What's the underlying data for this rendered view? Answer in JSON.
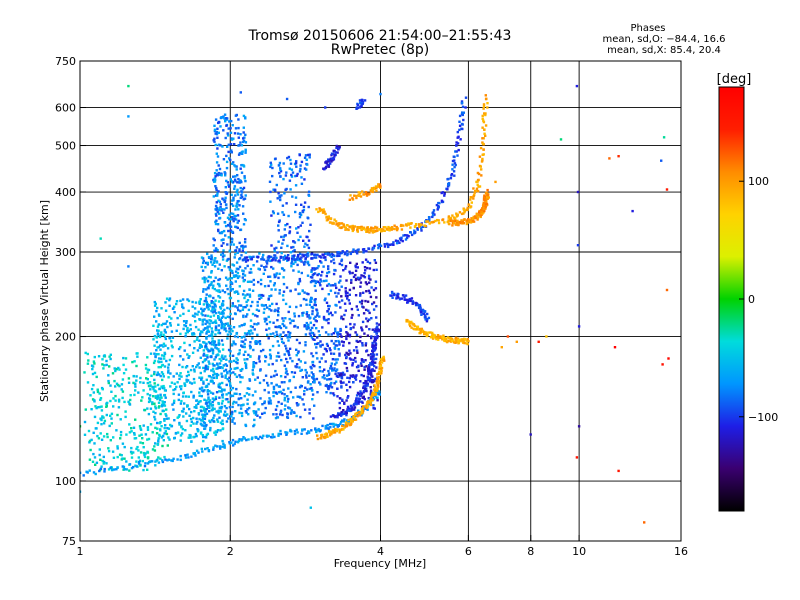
{
  "header": {
    "title": "Tromsø 20150606 21:54:00–21:55:43",
    "subtitle": "RwPretec (8p)"
  },
  "stats": {
    "heading": "Phases",
    "line_o": "mean, sd,O: −84.4, 16.6",
    "line_x": "mean, sd,X:  85.4, 20.4"
  },
  "colorbar": {
    "label": "[deg]",
    "ticks": [
      {
        "value": 100,
        "label": "100"
      },
      {
        "value": 0,
        "label": "0"
      },
      {
        "value": -100,
        "label": "−100"
      }
    ],
    "range": [
      -180,
      180
    ],
    "colors": [
      "#000000",
      "#3a0070",
      "#1e1ee6",
      "#0096ff",
      "#00dcdc",
      "#00d200",
      "#dcf000",
      "#ffd200",
      "#ff8c00",
      "#ff1e00",
      "#ff0000"
    ]
  },
  "chart_data": {
    "type": "scatter",
    "xlabel": "Frequency [MHz]",
    "ylabel": "Stationary phase Virtual Height [km]",
    "xscale": "log",
    "yscale": "log",
    "xlim": [
      1,
      16
    ],
    "ylim": [
      75,
      750
    ],
    "xticks": [
      {
        "value": 1,
        "label": "1"
      },
      {
        "value": 2,
        "label": "2"
      },
      {
        "value": 4,
        "label": "4"
      },
      {
        "value": 6,
        "label": "6"
      },
      {
        "value": 8,
        "label": "8"
      },
      {
        "value": 10,
        "label": "10"
      },
      {
        "value": 16,
        "label": "16"
      }
    ],
    "xgrid": [
      2,
      4,
      6,
      8,
      10
    ],
    "yticks": [
      {
        "value": 75,
        "label": "75"
      },
      {
        "value": 100,
        "label": "100"
      },
      {
        "value": 200,
        "label": "200"
      },
      {
        "value": 300,
        "label": "300"
      },
      {
        "value": 400,
        "label": "400"
      },
      {
        "value": 500,
        "label": "500"
      },
      {
        "value": 600,
        "label": "600"
      },
      {
        "value": 750,
        "label": "750"
      }
    ],
    "ygrid": [
      100,
      200,
      300,
      400,
      500,
      600
    ],
    "grid": true,
    "color_by": "phase (deg)",
    "traces": [
      {
        "x": [
          1.0,
          1.3,
          1.6,
          1.9,
          2.2,
          2.6,
          3.0,
          3.3,
          3.6,
          3.8,
          4.0
        ],
        "y": [
          103,
          108,
          112,
          118,
          123,
          126,
          128,
          131,
          137,
          145,
          155
        ],
        "phase": -70
      },
      {
        "x": [
          3.0,
          3.2,
          3.4,
          3.6,
          3.8,
          3.9,
          4.0,
          4.05
        ],
        "y": [
          123,
          126,
          130,
          137,
          145,
          155,
          168,
          180
        ],
        "phase": 95
      },
      {
        "x": [
          3.2,
          3.45,
          3.65,
          3.8,
          3.85,
          3.9,
          3.95
        ],
        "y": [
          135,
          140,
          150,
          165,
          180,
          195,
          210
        ],
        "phase": -105
      },
      {
        "x": [
          2.1,
          2.4,
          2.7,
          3.0,
          3.4,
          3.8,
          4.3,
          4.8,
          5.2,
          5.55,
          5.75,
          5.9
        ],
        "y": [
          290,
          290,
          292,
          295,
          298,
          303,
          315,
          335,
          370,
          430,
          520,
          630
        ],
        "phase": -95
      },
      {
        "x": [
          3.0,
          3.2,
          3.4,
          3.6,
          3.8,
          4.0,
          4.3,
          4.8,
          5.5,
          6.0,
          6.3,
          6.45,
          6.5
        ],
        "y": [
          370,
          348,
          338,
          335,
          333,
          335,
          337,
          342,
          352,
          372,
          420,
          520,
          640
        ],
        "phase": 95
      },
      {
        "x": [
          5.5,
          5.8,
          6.1,
          6.35,
          6.45,
          6.5,
          6.55
        ],
        "y": [
          345,
          345,
          350,
          360,
          370,
          385,
          400
        ],
        "phase": 105
      },
      {
        "x": [
          3.5,
          3.8,
          4.05
        ],
        "y": [
          390,
          400,
          415
        ],
        "phase": 100
      },
      {
        "x": [
          3.1,
          3.2,
          3.3
        ],
        "y": [
          450,
          470,
          500
        ],
        "phase": -110
      },
      {
        "x": [
          3.6,
          3.7
        ],
        "y": [
          600,
          620
        ],
        "phase": -95
      },
      {
        "x": [
          4.5,
          4.75,
          5.0,
          5.25,
          5.5,
          5.75,
          6.0
        ],
        "y": [
          215,
          207,
          202,
          199,
          197,
          196,
          195
        ],
        "phase": 90
      },
      {
        "x": [
          4.2,
          4.5,
          4.8,
          5.0
        ],
        "y": [
          245,
          240,
          230,
          215
        ],
        "phase": -100
      }
    ],
    "clouds": [
      {
        "x": [
          1.02,
          1.5
        ],
        "y": [
          105,
          185
        ],
        "phase": -40,
        "count": 350
      },
      {
        "x": [
          1.4,
          1.95
        ],
        "y": [
          120,
          240
        ],
        "phase": -55,
        "count": 550
      },
      {
        "x": [
          1.75,
          2.25
        ],
        "y": [
          130,
          300
        ],
        "phase": -70,
        "count": 600
      },
      {
        "x": [
          1.85,
          2.15
        ],
        "y": [
          300,
          580
        ],
        "phase": -80,
        "count": 320
      },
      {
        "x": [
          2.25,
          2.95
        ],
        "y": [
          135,
          300
        ],
        "phase": -80,
        "count": 450
      },
      {
        "x": [
          2.4,
          2.9
        ],
        "y": [
          300,
          480
        ],
        "phase": -85,
        "count": 150
      },
      {
        "x": [
          2.9,
          3.35
        ],
        "y": [
          150,
          300
        ],
        "phase": -90,
        "count": 250
      },
      {
        "x": [
          3.3,
          3.95
        ],
        "y": [
          140,
          290
        ],
        "phase": -110,
        "count": 300
      }
    ],
    "outliers": [
      {
        "x": 1.25,
        "y": 665,
        "phase": -20
      },
      {
        "x": 1.25,
        "y": 575,
        "phase": -70
      },
      {
        "x": 1.1,
        "y": 320,
        "phase": -30
      },
      {
        "x": 1.25,
        "y": 280,
        "phase": -80
      },
      {
        "x": 1.0,
        "y": 130,
        "phase": -10
      },
      {
        "x": 1.0,
        "y": 95,
        "phase": -60
      },
      {
        "x": 2.1,
        "y": 645,
        "phase": -90
      },
      {
        "x": 2.6,
        "y": 625,
        "phase": -90
      },
      {
        "x": 4.0,
        "y": 640,
        "phase": -80
      },
      {
        "x": 2.9,
        "y": 88,
        "phase": -50
      },
      {
        "x": 3.1,
        "y": 600,
        "phase": -100
      },
      {
        "x": 6.8,
        "y": 420,
        "phase": 100
      },
      {
        "x": 7.0,
        "y": 190,
        "phase": 95
      },
      {
        "x": 7.5,
        "y": 195,
        "phase": 100
      },
      {
        "x": 7.2,
        "y": 200,
        "phase": 130
      },
      {
        "x": 8.0,
        "y": 125,
        "phase": -120
      },
      {
        "x": 8.3,
        "y": 195,
        "phase": 150
      },
      {
        "x": 8.6,
        "y": 200,
        "phase": 80
      },
      {
        "x": 9.9,
        "y": 665,
        "phase": -110
      },
      {
        "x": 9.95,
        "y": 400,
        "phase": -120
      },
      {
        "x": 9.95,
        "y": 310,
        "phase": -100
      },
      {
        "x": 10.0,
        "y": 210,
        "phase": -110
      },
      {
        "x": 10.0,
        "y": 130,
        "phase": -130
      },
      {
        "x": 9.9,
        "y": 112,
        "phase": 160
      },
      {
        "x": 9.2,
        "y": 515,
        "phase": -20
      },
      {
        "x": 11.5,
        "y": 470,
        "phase": 120
      },
      {
        "x": 12.0,
        "y": 475,
        "phase": 140
      },
      {
        "x": 11.8,
        "y": 190,
        "phase": 180
      },
      {
        "x": 12.0,
        "y": 105,
        "phase": 155
      },
      {
        "x": 12.8,
        "y": 365,
        "phase": -110
      },
      {
        "x": 13.5,
        "y": 82,
        "phase": 120
      },
      {
        "x": 14.6,
        "y": 465,
        "phase": -90
      },
      {
        "x": 14.8,
        "y": 520,
        "phase": -25
      },
      {
        "x": 15.0,
        "y": 405,
        "phase": 150
      },
      {
        "x": 15.0,
        "y": 250,
        "phase": 120
      },
      {
        "x": 15.1,
        "y": 180,
        "phase": 170
      },
      {
        "x": 14.7,
        "y": 175,
        "phase": 160
      }
    ]
  }
}
